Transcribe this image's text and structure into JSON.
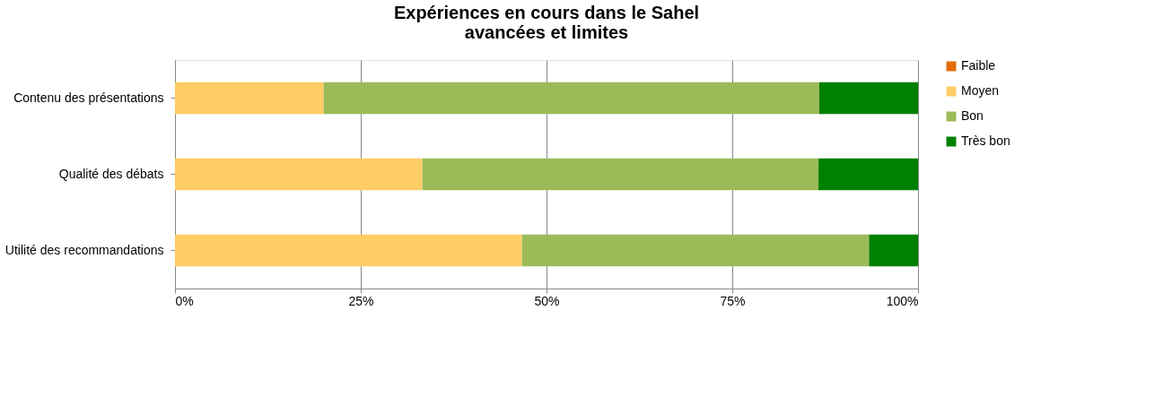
{
  "chart_data": {
    "type": "bar",
    "orientation": "horizontal",
    "stacked": true,
    "title": "Expériences en cours dans le Sahel\navancées et limites",
    "categories": [
      "Contenu des présentations",
      "Qualité des débats",
      "Utilité des recommandations"
    ],
    "series": [
      {
        "name": "Faible",
        "color": "#e46c0a",
        "values": [
          0,
          0,
          0
        ]
      },
      {
        "name": "Moyen",
        "color": "#ffcc66",
        "values": [
          20,
          33.3,
          46.7
        ]
      },
      {
        "name": "Bon",
        "color": "#9bbb59",
        "values": [
          66.7,
          53.3,
          46.7
        ]
      },
      {
        "name": "Très bon",
        "color": "#008000",
        "values": [
          13.3,
          13.4,
          6.6
        ]
      }
    ],
    "xlim": [
      0,
      100
    ],
    "xticks": [
      {
        "value": 0,
        "label": "0%"
      },
      {
        "value": 25,
        "label": "25%"
      },
      {
        "value": 50,
        "label": "50%"
      },
      {
        "value": 75,
        "label": "75%"
      },
      {
        "value": 100,
        "label": "100%"
      }
    ],
    "grid": "x",
    "legend": "right"
  }
}
